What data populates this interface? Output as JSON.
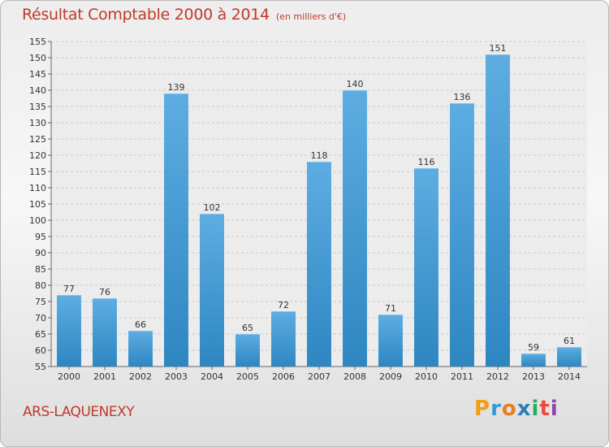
{
  "header": {
    "title": "Résultat Comptable 2000 à 2014",
    "unit": "(en milliers d'€)"
  },
  "footer": {
    "place": "ARS-LAQUENEXY",
    "logo": "Proxiti"
  },
  "colors": {
    "title": "#c0392b",
    "bar_top": "#5dade2",
    "bar_bottom": "#2e86c1"
  },
  "chart_data": {
    "type": "bar",
    "title": "Résultat Comptable 2000 à 2014",
    "subtitle": "(en milliers d'€)",
    "xlabel": "",
    "ylabel": "",
    "categories": [
      "2000",
      "2001",
      "2002",
      "2003",
      "2004",
      "2005",
      "2006",
      "2007",
      "2008",
      "2009",
      "2010",
      "2011",
      "2012",
      "2013",
      "2014"
    ],
    "values": [
      77,
      76,
      66,
      139,
      102,
      65,
      72,
      118,
      140,
      71,
      116,
      136,
      151,
      59,
      61
    ],
    "ylim": [
      55,
      155
    ],
    "yticks": [
      55,
      60,
      65,
      70,
      75,
      80,
      85,
      90,
      95,
      100,
      105,
      110,
      115,
      120,
      125,
      130,
      135,
      140,
      145,
      150,
      155
    ],
    "grid": true,
    "legend": "none"
  }
}
